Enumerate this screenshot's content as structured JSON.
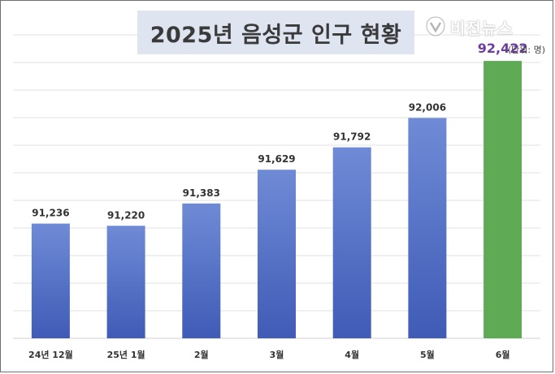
{
  "chart_data": {
    "type": "bar",
    "title": "2025년 음성군 인구 현황",
    "unit": "(단위: 명)",
    "categories": [
      "24년 12월",
      "25년 1월",
      "2월",
      "3월",
      "4월",
      "5월",
      "6월"
    ],
    "values": [
      91236,
      91220,
      91383,
      91629,
      91792,
      92006,
      92422
    ],
    "value_labels": [
      "91,236",
      "91,220",
      "91,383",
      "91,629",
      "91,792",
      "92,006",
      "92,422"
    ],
    "highlight_index": 6,
    "colors": {
      "bar": "#5b79c9",
      "highlight": "#5faa55",
      "highlight_label": "#6e3da0",
      "grid": "#d9d9d9"
    },
    "ylim": [
      90400,
      92600
    ],
    "grid": true,
    "legend": false
  },
  "watermark": {
    "text": "비전뉴스",
    "icon": "logo-icon"
  }
}
